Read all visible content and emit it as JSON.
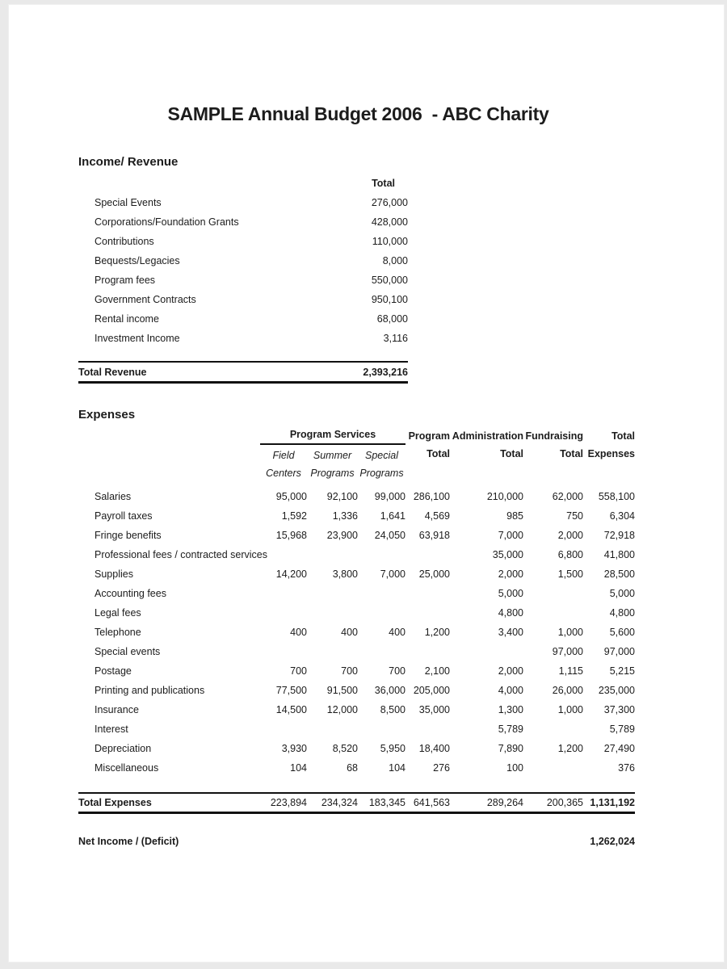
{
  "page": {
    "title": "SAMPLE Annual Budget 2006  - ABC Charity"
  },
  "income": {
    "heading": "Income/ Revenue",
    "total_header": "Total",
    "rows": [
      {
        "label": "Special Events",
        "value": "276,000"
      },
      {
        "label": "Corporations/Foundation Grants",
        "value": "428,000"
      },
      {
        "label": "Contributions",
        "value": "110,000"
      },
      {
        "label": "Bequests/Legacies",
        "value": "8,000"
      },
      {
        "label": "Program fees",
        "value": "550,000"
      },
      {
        "label": "Government Contracts",
        "value": "950,100"
      },
      {
        "label": "Rental income",
        "value": "68,000"
      },
      {
        "label": "Investment Income",
        "value": "3,116"
      }
    ],
    "total": {
      "label": "Total Revenue",
      "value": "2,393,216"
    }
  },
  "expenses": {
    "heading": "Expenses",
    "header": {
      "program_services": "Program Services",
      "sub_columns": {
        "field_centers": "Field\nCenters",
        "summer_programs": "Summer\nPrograms",
        "special_programs": "Special\nPrograms"
      },
      "program_total": "Program\nTotal",
      "administration_total": "Administration\nTotal",
      "fundraising_total": "Fundraising\nTotal",
      "total_expenses": "Total\nExpenses"
    },
    "rows": [
      {
        "label": "Salaries",
        "values": [
          "95,000",
          "92,100",
          "99,000",
          "286,100",
          "210,000",
          "62,000",
          "558,100"
        ]
      },
      {
        "label": "Payroll taxes",
        "values": [
          "1,592",
          "1,336",
          "1,641",
          "4,569",
          "985",
          "750",
          "6,304"
        ]
      },
      {
        "label": "Fringe benefits",
        "values": [
          "15,968",
          "23,900",
          "24,050",
          "63,918",
          "7,000",
          "2,000",
          "72,918"
        ]
      },
      {
        "label": "Professional fees / contracted services",
        "values": [
          "",
          "",
          "",
          "",
          "35,000",
          "6,800",
          "41,800"
        ]
      },
      {
        "label": "Supplies",
        "values": [
          "14,200",
          "3,800",
          "7,000",
          "25,000",
          "2,000",
          "1,500",
          "28,500"
        ]
      },
      {
        "label": "Accounting fees",
        "values": [
          "",
          "",
          "",
          "",
          "5,000",
          "",
          "5,000"
        ]
      },
      {
        "label": "Legal fees",
        "values": [
          "",
          "",
          "",
          "",
          "4,800",
          "",
          "4,800"
        ]
      },
      {
        "label": "Telephone",
        "values": [
          "400",
          "400",
          "400",
          "1,200",
          "3,400",
          "1,000",
          "5,600"
        ]
      },
      {
        "label": "Special events",
        "values": [
          "",
          "",
          "",
          "",
          "",
          "97,000",
          "97,000"
        ]
      },
      {
        "label": "Postage",
        "values": [
          "700",
          "700",
          "700",
          "2,100",
          "2,000",
          "1,115",
          "5,215"
        ]
      },
      {
        "label": "Printing and publications",
        "values": [
          "77,500",
          "91,500",
          "36,000",
          "205,000",
          "4,000",
          "26,000",
          "235,000"
        ]
      },
      {
        "label": "Insurance",
        "values": [
          "14,500",
          "12,000",
          "8,500",
          "35,000",
          "1,300",
          "1,000",
          "37,300"
        ]
      },
      {
        "label": "Interest",
        "values": [
          "",
          "",
          "",
          "",
          "5,789",
          "",
          "5,789"
        ]
      },
      {
        "label": "Depreciation",
        "values": [
          "3,930",
          "8,520",
          "5,950",
          "18,400",
          "7,890",
          "1,200",
          "27,490"
        ]
      },
      {
        "label": "Miscellaneous",
        "values": [
          "104",
          "68",
          "104",
          "276",
          "100",
          "",
          "376"
        ]
      }
    ],
    "total": {
      "label": "Total Expenses",
      "values": [
        "223,894",
        "234,324",
        "183,345",
        "641,563",
        "289,264",
        "200,365",
        "1,131,192"
      ]
    }
  },
  "net_income": {
    "label": "Net Income / (Deficit)",
    "value": "1,262,024"
  }
}
